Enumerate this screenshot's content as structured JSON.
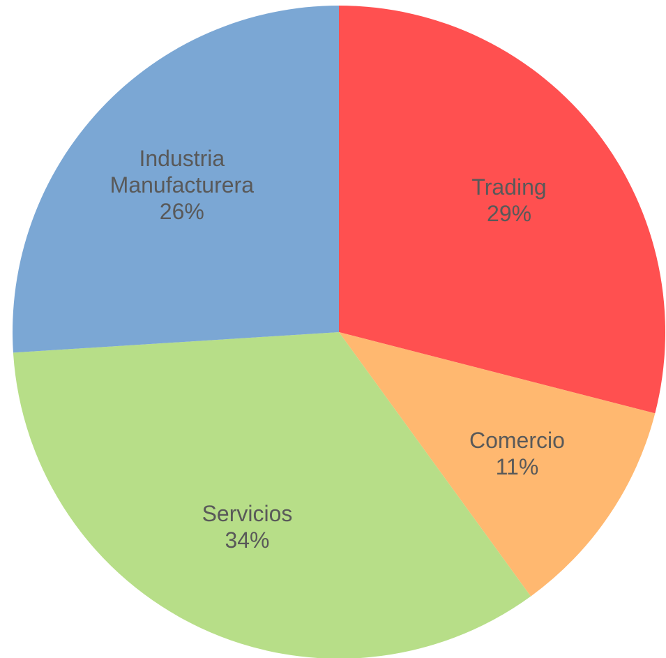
{
  "chart_data": {
    "type": "pie",
    "categories": [
      "Trading",
      "Comercio",
      "Servicios",
      "Industria Manufacturera"
    ],
    "values": [
      29,
      11,
      34,
      26
    ],
    "value_labels": [
      "29%",
      "11%",
      "34%",
      "26%"
    ],
    "colors": [
      "#ff5050",
      "#ffb870",
      "#b7de88",
      "#7ba7d4"
    ]
  }
}
